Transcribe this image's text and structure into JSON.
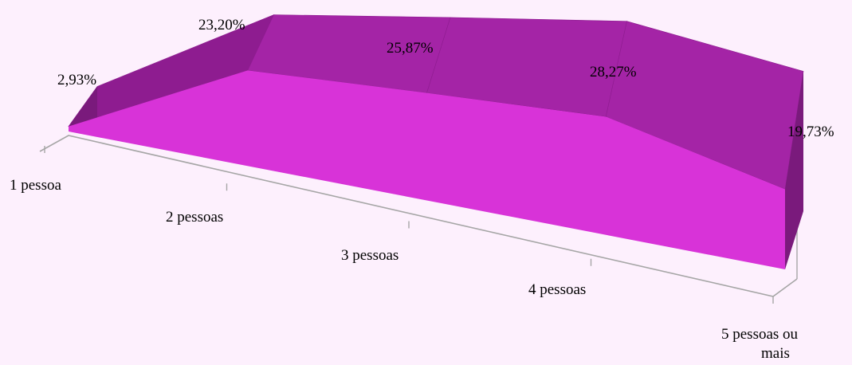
{
  "chart_data": {
    "type": "area",
    "style": "3d",
    "categories": [
      "1 pessoa",
      "2 pessoas",
      "3 pessoas",
      "4 pessoas",
      "5 pessoas ou mais"
    ],
    "series": [
      {
        "values": [
          2.93,
          23.2,
          25.87,
          28.27,
          19.73
        ]
      }
    ],
    "data_labels": [
      "2,93%",
      "23,20%",
      "25,87%",
      "28,27%",
      "19,73%"
    ],
    "title": "",
    "xlabel": "",
    "ylabel": "",
    "grid": false,
    "legend": false
  },
  "colors": {
    "background": "#fdf0fd",
    "front_face": "#d833d8",
    "top_face": "#a424a6",
    "top_face_dark": "#8e1c90",
    "side_face": "#7a1a7c",
    "axis": "#a6a6a6"
  }
}
